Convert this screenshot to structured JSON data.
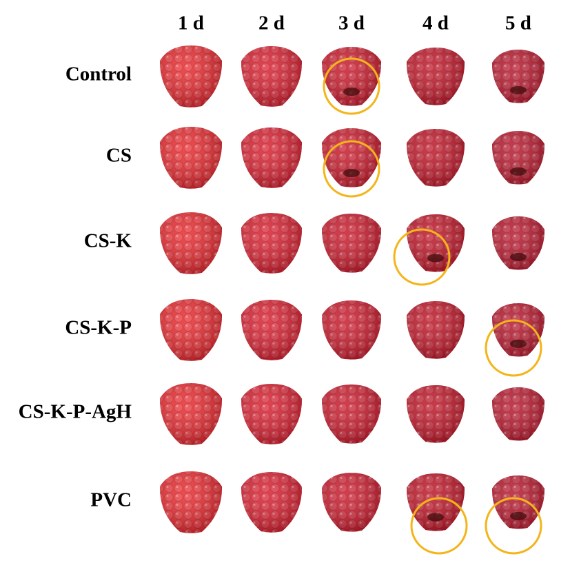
{
  "columns": [
    "1 d",
    "2 d",
    "3 d",
    "4 d",
    "5 d"
  ],
  "rows": [
    "Control",
    "CS",
    "CS-K",
    "CS-K-P",
    "CS-K-P-AgH",
    "PVC"
  ]
}
